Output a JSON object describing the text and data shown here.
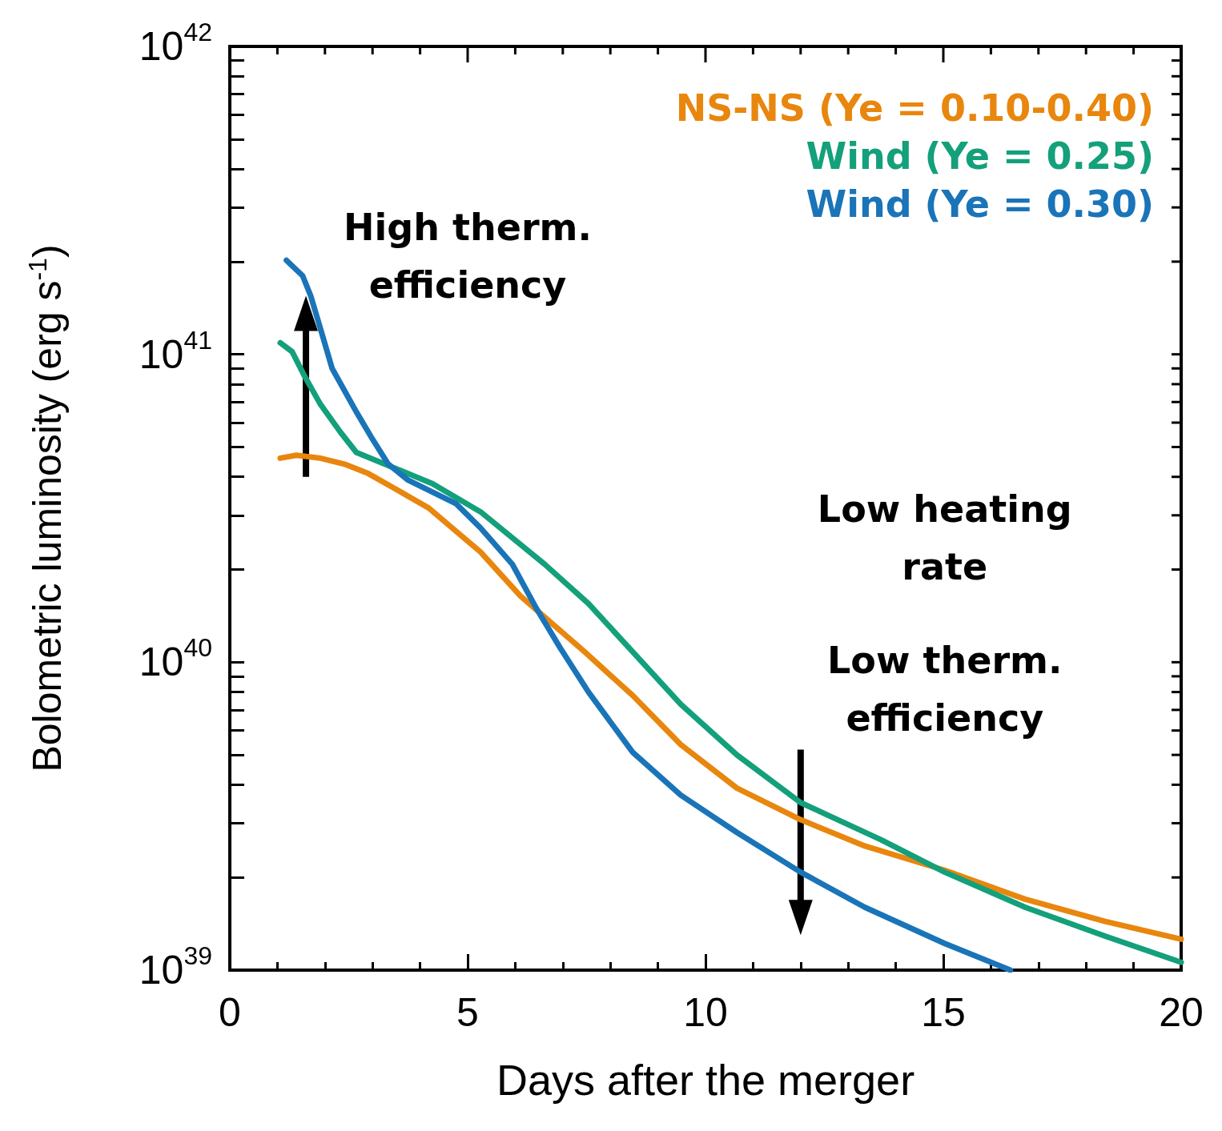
{
  "chart_data": {
    "type": "line",
    "xlabel": "Days after the merger",
    "ylabel": "Bolometric luminosity (erg s$^{-1}$)",
    "xlim": [
      0,
      20
    ],
    "xticks": [
      0,
      5,
      10,
      15,
      20
    ],
    "ylim": [
      1e+39,
      1e+42
    ],
    "yticks": [
      {
        "value": 1e+39,
        "label": "10$^{39}$"
      },
      {
        "value": 2e+39,
        "label": null
      },
      {
        "value": 3e+39,
        "label": null
      },
      {
        "value": 4e+39,
        "label": null
      },
      {
        "value": 5e+39,
        "label": null
      },
      {
        "value": 6e+39,
        "label": null
      },
      {
        "value": 7e+39,
        "label": null
      },
      {
        "value": 8e+39,
        "label": null
      },
      {
        "value": 9e+39,
        "label": null
      },
      {
        "value": 1e+40,
        "label": "10$^{40}$"
      },
      {
        "value": 2e+40,
        "label": null
      },
      {
        "value": 3e+40,
        "label": null
      },
      {
        "value": 4e+40,
        "label": null
      },
      {
        "value": 5e+40,
        "label": null
      },
      {
        "value": 6e+40,
        "label": null
      },
      {
        "value": 7e+40,
        "label": null
      },
      {
        "value": 8e+40,
        "label": null
      },
      {
        "value": 9e+40,
        "label": null
      },
      {
        "value": 1e+41,
        "label": "10$^{41}$"
      },
      {
        "value": 2e+41,
        "label": null
      },
      {
        "value": 3e+41,
        "label": null
      },
      {
        "value": 4e+41,
        "label": null
      },
      {
        "value": 5e+41,
        "label": null
      },
      {
        "value": 6e+41,
        "label": null
      },
      {
        "value": 7e+41,
        "label": null
      },
      {
        "value": 8e+41,
        "label": null
      },
      {
        "value": 9e+41,
        "label": null
      },
      {
        "value": 1e+42,
        "label": "10$^{42}$"
      }
    ],
    "log": "y",
    "legend": "top right",
    "grid": false,
    "marker": "none",
    "line_style": "solid",
    "series": [
      {
        "name": "NS-NS (Ye = 0.10-0.40)",
        "color": "#e8860d",
        "x": [
          1.06,
          1.4,
          1.9,
          2.41,
          2.91,
          3.42,
          4.18,
          5.27,
          6.11,
          7.46,
          8.47,
          9.48,
          10.66,
          12.0,
          13.35,
          15.03,
          16.72,
          18.4,
          20
        ],
        "values": [
          4.6e+40,
          4.7e+40,
          4.6e+40,
          4.4e+40,
          4.1e+40,
          3.7e+40,
          3.17e+40,
          2.28e+40,
          1.64e+40,
          1.08e+40,
          7.8e+39,
          5.4e+39,
          3.9e+39,
          3.08e+39,
          2.53e+39,
          2.11e+39,
          1.7e+39,
          1.44e+39,
          1.26e+39
        ]
      },
      {
        "name": "Wind (Ye = 0.25)",
        "color": "#13a07a",
        "x": [
          1.06,
          1.31,
          1.57,
          1.9,
          2.32,
          2.66,
          3.42,
          4.26,
          5.27,
          6.62,
          7.54,
          8.47,
          9.48,
          10.66,
          12.0,
          13.69,
          15.03,
          16.72,
          18.4,
          20
        ],
        "values": [
          1.09e+41,
          1.02e+41,
          8.5e+40,
          6.9e+40,
          5.6e+40,
          4.8e+40,
          4.3e+40,
          3.8e+40,
          3.08e+40,
          2.08e+40,
          1.55e+40,
          1.08e+40,
          7.3e+39,
          5e+39,
          3.5e+39,
          2.65e+39,
          2.08e+39,
          1.6e+39,
          1.29e+39,
          1.06e+39
        ]
      },
      {
        "name": "Wind (Ye = 0.30)",
        "color": "#1a74b8",
        "x": [
          1.19,
          1.53,
          1.7,
          1.9,
          2.15,
          2.66,
          3.0,
          3.33,
          3.75,
          4.76,
          5.27,
          5.94,
          6.44,
          6.95,
          7.54,
          8.47,
          9.48,
          10.66,
          12.0,
          13.35,
          15.03,
          16.41
        ],
        "values": [
          2.02e+41,
          1.8e+41,
          1.55e+41,
          1.22e+41,
          9e+40,
          6.5e+40,
          5.3e+40,
          4.4e+40,
          3.9e+40,
          3.27e+40,
          2.73e+40,
          2.08e+40,
          1.5e+40,
          1.11e+40,
          8e+39,
          5.1e+39,
          3.7e+39,
          2.8e+39,
          2.08e+39,
          1.6e+39,
          1.22e+39,
          1e+39
        ]
      }
    ],
    "annotations": [
      "High therm. efficiency",
      "Low heating rate",
      "Low therm. efficiency"
    ]
  }
}
